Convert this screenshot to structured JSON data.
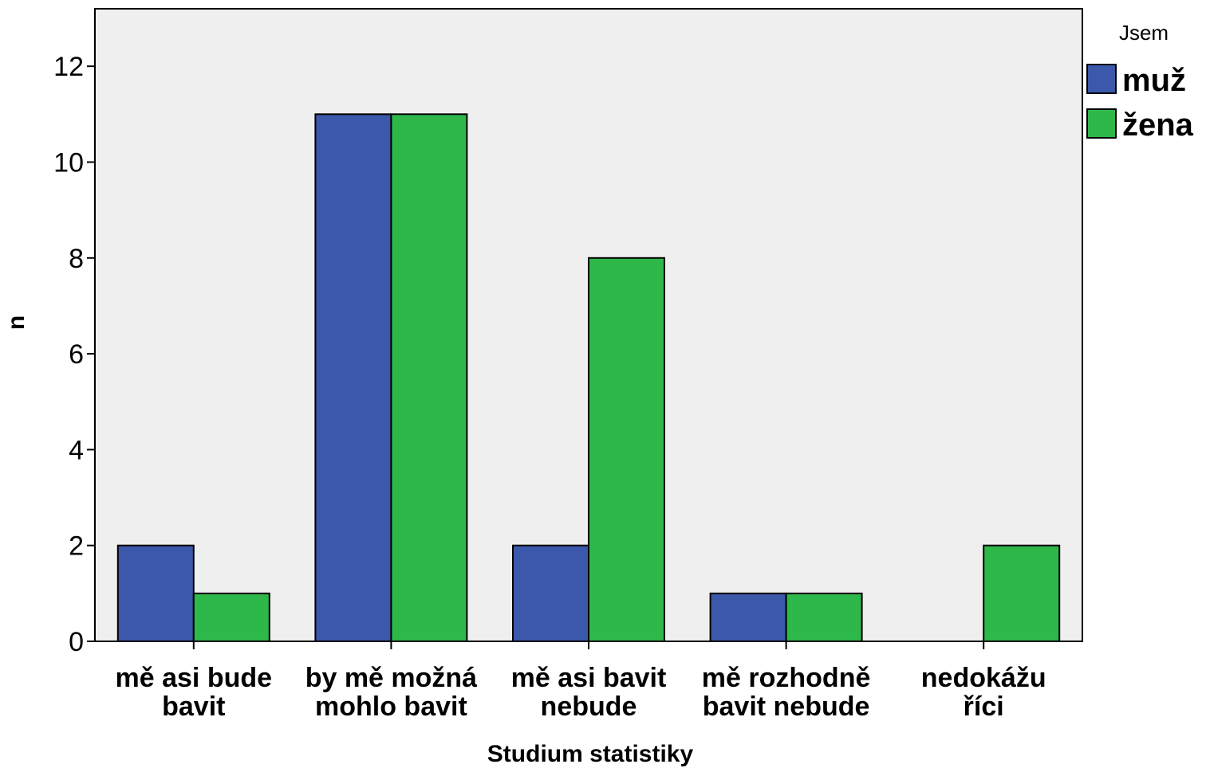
{
  "chart_data": {
    "type": "bar",
    "title": "",
    "xlabel": "Studium statistiky",
    "ylabel": "n",
    "ylim": [
      0,
      13.2
    ],
    "yticks": [
      0,
      2,
      4,
      6,
      8,
      10,
      12
    ],
    "grid": false,
    "legend_title": "Jsem",
    "legend_position": "right",
    "categories": [
      [
        "mě asi bude",
        "bavit"
      ],
      [
        "by mě možná",
        "mohlo bavit"
      ],
      [
        "mě asi bavit",
        "nebude"
      ],
      [
        "mě rozhodně",
        "bavit nebude"
      ],
      [
        "nedokážu",
        "říci"
      ]
    ],
    "series": [
      {
        "name": "muž",
        "color": "#3c58aa",
        "values": [
          2,
          11,
          2,
          1,
          0
        ]
      },
      {
        "name": "žena",
        "color": "#2eb84a",
        "values": [
          1,
          11,
          8,
          1,
          2
        ]
      }
    ],
    "plot_background": "#efefef"
  }
}
